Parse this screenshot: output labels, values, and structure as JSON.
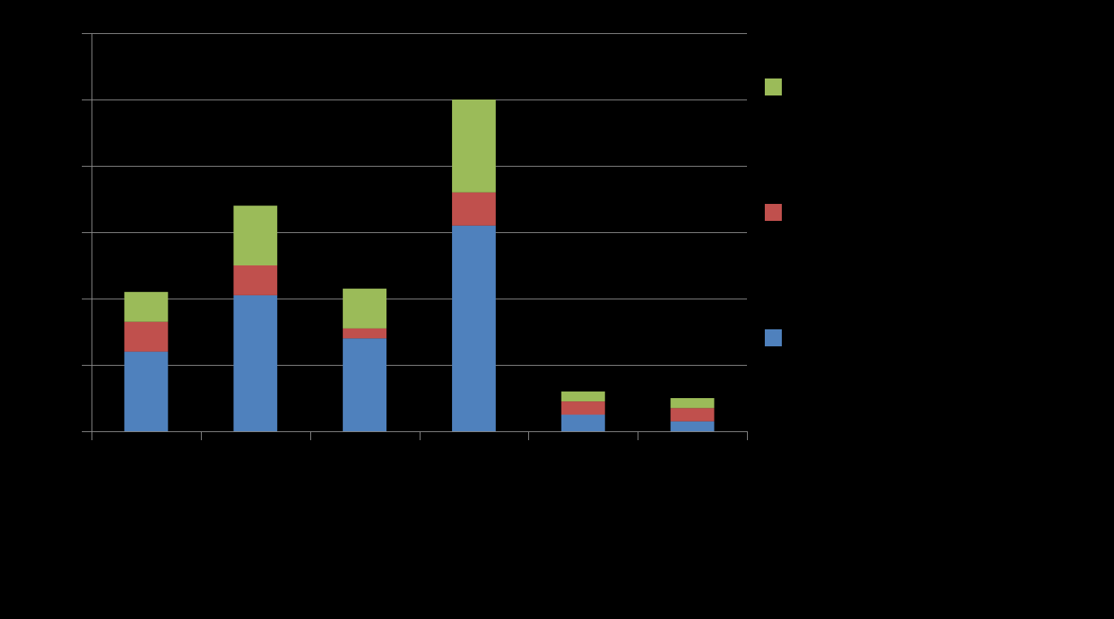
{
  "chart_data": {
    "type": "bar",
    "stacked": true,
    "categories": [
      "",
      "",
      "",
      "",
      "",
      ""
    ],
    "series": [
      {
        "color": "#4F81BD",
        "values": [
          12,
          20.5,
          14,
          31,
          2.5,
          1.5
        ]
      },
      {
        "color": "#C0504D",
        "values": [
          4.5,
          4.5,
          1.5,
          5,
          2,
          2
        ]
      },
      {
        "color": "#9BBB59",
        "values": [
          4.5,
          9,
          6,
          14,
          1.5,
          1.5
        ]
      }
    ],
    "ylim": [
      0,
      60
    ],
    "y_gridline_step": 10,
    "grid": true,
    "legend": "right",
    "background": "#000000",
    "axis_color": "#868686"
  }
}
